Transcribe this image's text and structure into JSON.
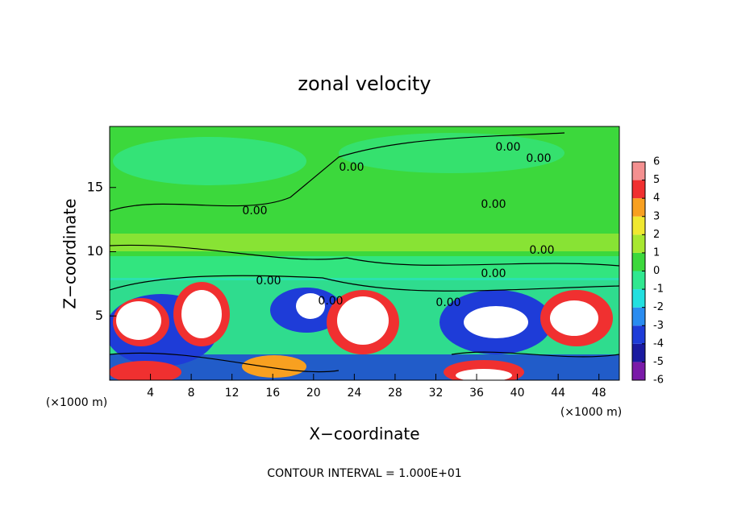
{
  "chart_data": {
    "type": "contour",
    "title": "zonal velocity",
    "x_label": "X−coordinate",
    "y_label": "Z−coordinate",
    "x_unit": "(×1000 m)",
    "x_unit_right": "(×1000 m)",
    "footnote": "CONTOUR INTERVAL = 1.000E+01",
    "xlim": [
      0,
      50
    ],
    "xticks": [
      4,
      8,
      12,
      16,
      20,
      24,
      28,
      32,
      36,
      40,
      44,
      48
    ],
    "ylim": [
      0,
      19.75
    ],
    "yticks": [
      5,
      10,
      15
    ],
    "contour_labels": [
      "0.00",
      "0.00",
      "0.00",
      "0.00",
      "0.00",
      "0.00",
      "0.00",
      "0.00",
      "0.00",
      "0.00"
    ],
    "colorbar": {
      "ticks": [
        -6,
        -5,
        -4,
        -3,
        -2,
        -1,
        0,
        1,
        2,
        3,
        4,
        5,
        6
      ],
      "colors": [
        "#7a1aa8",
        "#1a1aa0",
        "#1e3cd8",
        "#2a8cf0",
        "#22e0e0",
        "#30e890",
        "#3cd83c",
        "#a8e830",
        "#f0e830",
        "#f8a020",
        "#f03030",
        "#f49090"
      ]
    }
  }
}
